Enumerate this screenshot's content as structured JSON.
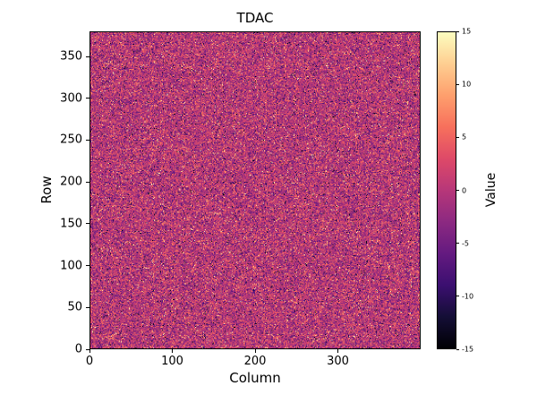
{
  "chart_data": {
    "type": "heatmap",
    "title": "TDAC",
    "xlabel": "Column",
    "ylabel": "Row",
    "x_range": [
      0,
      400
    ],
    "y_range": [
      0,
      380
    ],
    "x_ticks": [
      0,
      100,
      200,
      300
    ],
    "y_ticks": [
      0,
      50,
      100,
      150,
      200,
      250,
      300,
      350
    ],
    "grid": {
      "cols": 400,
      "rows": 380
    },
    "colorbar": {
      "label": "Value",
      "min": -15,
      "max": 15,
      "ticks": [
        15,
        10,
        5,
        0,
        -5,
        -10,
        -15
      ],
      "colormap": "magma",
      "stops": [
        "#000004",
        "#140e36",
        "#3b0f70",
        "#641a80",
        "#8c2981",
        "#b73779",
        "#de4968",
        "#f7705c",
        "#fe9f6d",
        "#fece91",
        "#fcfdbf"
      ]
    },
    "data_description": "Per-pixel TDAC values over a 400x380 grid: dense random speckle noise centered near 0 (pink/magenta midtone of the magma colormap) with scattered bright (positive, up to +15) and dark (negative, down to -15) pixels distributed uniformly across the image.",
    "noise": {
      "seed": 42,
      "spread": 5,
      "outlier_fraction": 0.12
    }
  }
}
